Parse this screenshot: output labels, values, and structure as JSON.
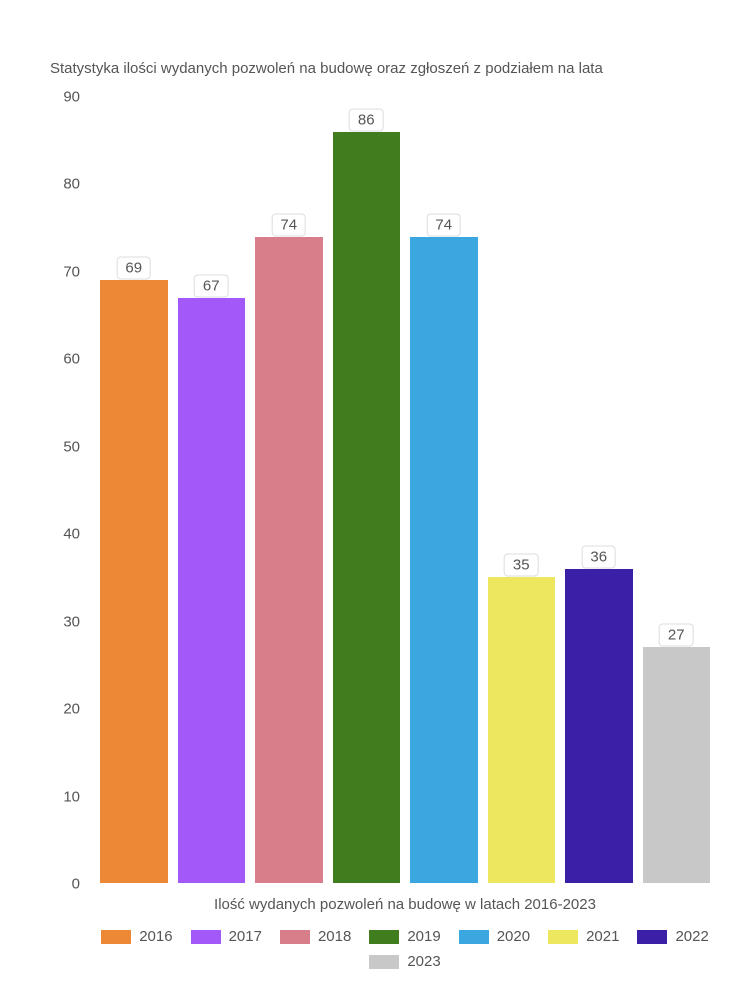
{
  "chart": {
    "type": "bar",
    "title": "Statystyka ilości wydanych pozwoleń na budowę oraz zgłoszeń z podziałem na lata",
    "xlabel": "Ilość wydanych pozwoleń na budowę w latach 2016-2023",
    "ylim": [
      0,
      90
    ],
    "ytick_step": 10,
    "yticks": [
      0,
      10,
      20,
      30,
      40,
      50,
      60,
      70,
      80,
      90
    ],
    "background_color": "#ffffff",
    "text_color": "#555555",
    "title_fontsize": 15,
    "label_fontsize": 15,
    "tick_fontsize": 15,
    "bar_label_bg": "#ffffff",
    "bar_label_border": "#dddddd",
    "series": [
      {
        "year": "2016",
        "value": 69,
        "color": "#ed8936"
      },
      {
        "year": "2017",
        "value": 67,
        "color": "#a259f7"
      },
      {
        "year": "2018",
        "value": 74,
        "color": "#d87e8b"
      },
      {
        "year": "2019",
        "value": 86,
        "color": "#3f7d1f"
      },
      {
        "year": "2020",
        "value": 74,
        "color": "#3ba7e0"
      },
      {
        "year": "2021",
        "value": 35,
        "color": "#ece75f"
      },
      {
        "year": "2022",
        "value": 36,
        "color": "#3b1fa6"
      },
      {
        "year": "2023",
        "value": 27,
        "color": "#c8c8c8"
      }
    ]
  }
}
